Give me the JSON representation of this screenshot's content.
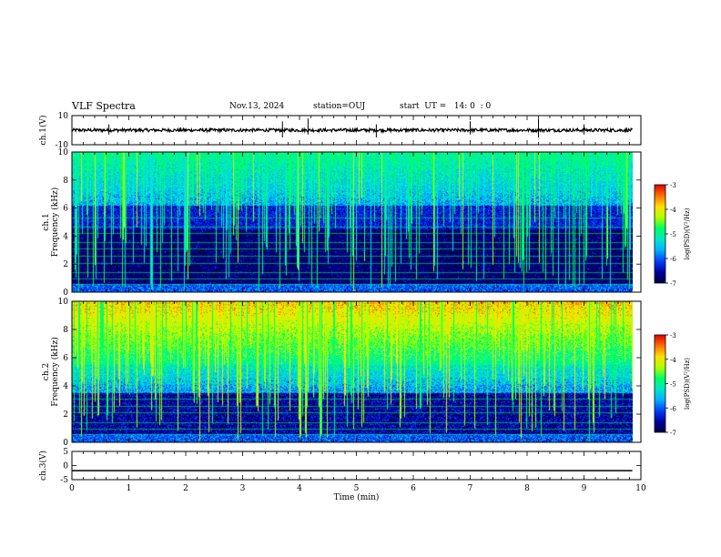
{
  "header": {
    "title": "VLF Spectra",
    "date": "Nov.13, 2024",
    "station": "station=OUJ",
    "start": "start  UT =   14: 0  : 0"
  },
  "colors": {
    "colormap": [
      "#000040",
      "#0000a0",
      "#0040ff",
      "#00b0ff",
      "#00e8c8",
      "#00ff60",
      "#b0ff00",
      "#ffe000",
      "#ff7000",
      "#e00000",
      "#ffffff"
    ]
  },
  "chart_data": [
    {
      "type": "line",
      "name": "ch1-waveform",
      "ylabel": "ch.1(V)",
      "ylim": [
        -10,
        10
      ],
      "yticks": [
        10,
        -10
      ],
      "baseline": 0,
      "xlim": [
        0,
        10
      ]
    },
    {
      "type": "heatmap",
      "name": "ch1-spectrogram",
      "ylabel": "ch.1  Frequency  (kHz)",
      "ylim": [
        0,
        10
      ],
      "yticks": [
        0,
        2,
        4,
        6,
        8,
        10
      ],
      "xlim": [
        0,
        10
      ],
      "data_end_min": 9.85,
      "colorbar": {
        "label": "log(PSD)(V²/Hz)",
        "range": [
          -7,
          -3
        ],
        "ticks": [
          -3,
          -4,
          -5,
          -6,
          -7
        ]
      }
    },
    {
      "type": "heatmap",
      "name": "ch2-spectrogram",
      "ylabel": "ch.2  Frequency  (kHz)",
      "ylim": [
        0,
        10
      ],
      "yticks": [
        0,
        2,
        4,
        6,
        8,
        10
      ],
      "xlim": [
        0,
        10
      ],
      "data_end_min": 9.85,
      "colorbar": {
        "label": "log(PSD)(V²/Hz)",
        "range": [
          -7,
          -3
        ],
        "ticks": [
          -3,
          -4,
          -5,
          -6,
          -7
        ]
      }
    },
    {
      "type": "line",
      "name": "ch3-waveform",
      "ylabel": "ch.3(V)",
      "ylim": [
        -5,
        5
      ],
      "yticks": [
        5,
        0,
        -5
      ],
      "constant_value": -1.8,
      "xlim": [
        0,
        10
      ],
      "xlabel": "Time  (min)",
      "xticks": [
        0,
        1,
        2,
        3,
        4,
        5,
        6,
        7,
        8,
        9,
        10
      ]
    }
  ]
}
